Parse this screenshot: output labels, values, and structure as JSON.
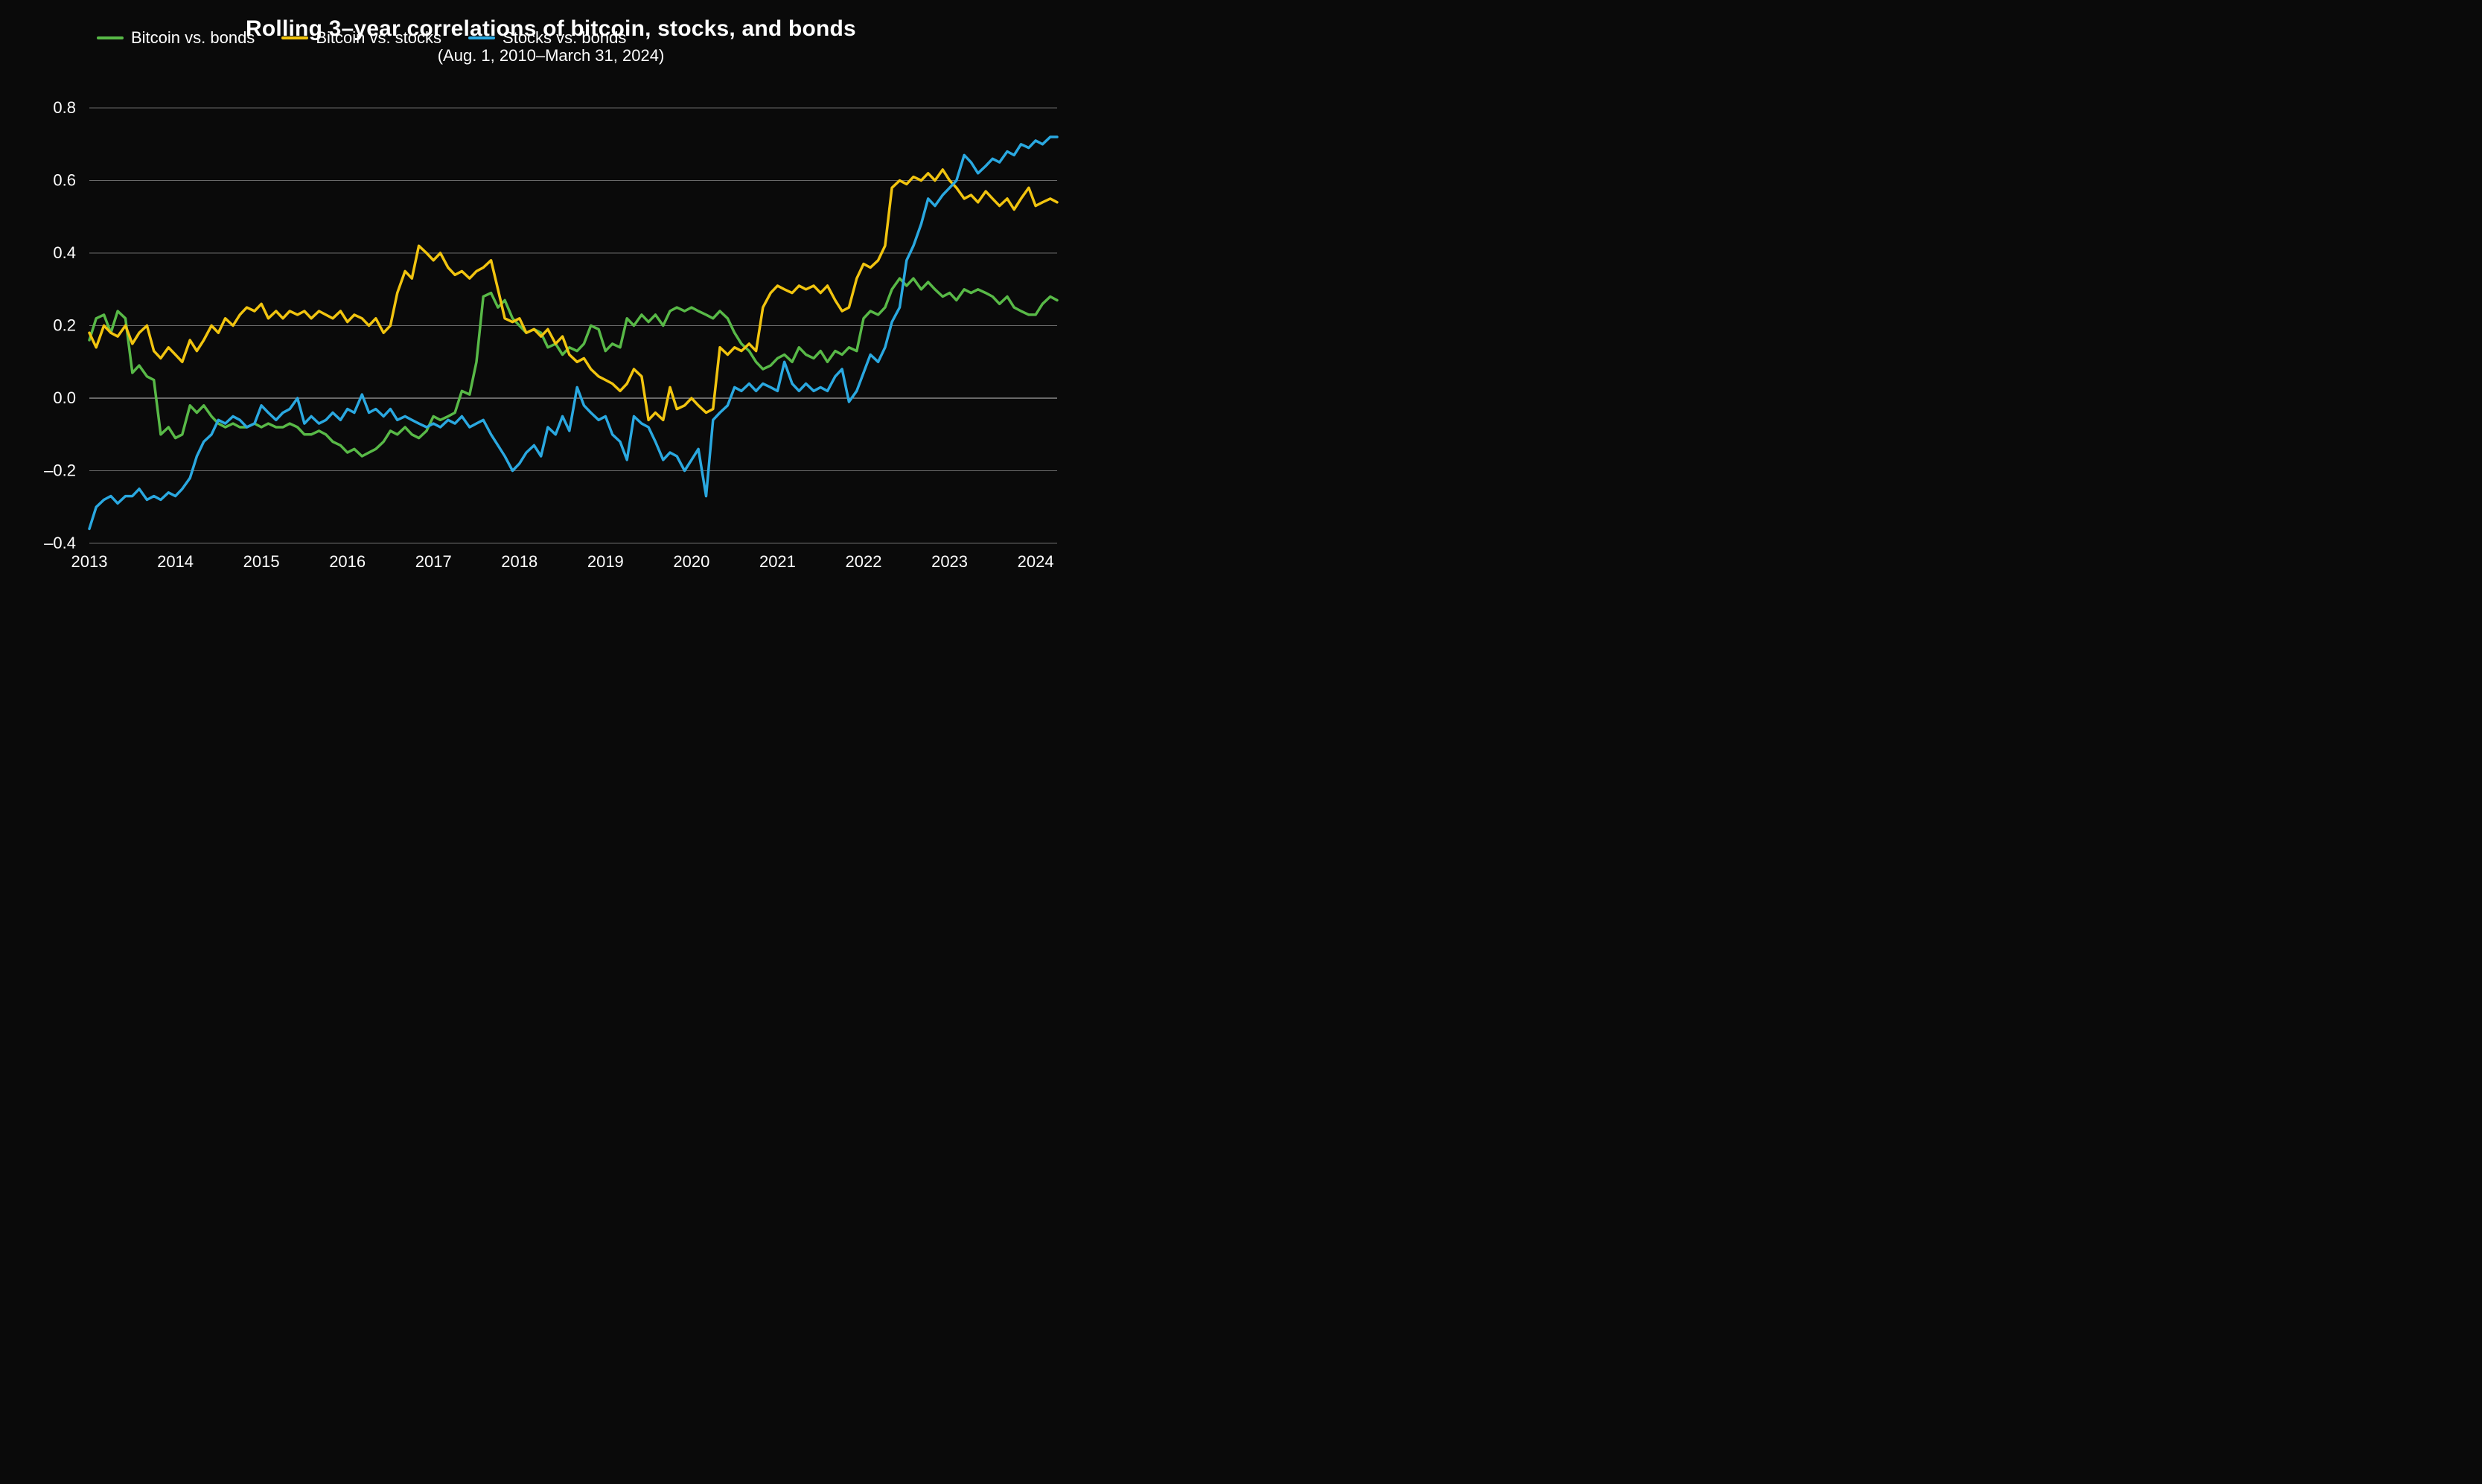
{
  "chart": {
    "type": "line",
    "title": "Rolling 3–year correlations of bitcoin, stocks, and bonds",
    "subtitle": "(Aug. 1, 2010–March 31, 2024)",
    "background_color": "#0a0a0a",
    "title_color": "#ffffff",
    "title_fontsize": 30,
    "subtitle_fontsize": 22,
    "axis_label_fontsize": 22,
    "axis_label_color": "#ffffff",
    "line_width": 3.5,
    "grid_color_major": "#6a6a6a",
    "grid_color_zero": "#c8c8c8",
    "plot_inner_padding_left": 0,
    "x": {
      "min": 2013,
      "max": 2024.25,
      "ticks": [
        2013,
        2014,
        2015,
        2016,
        2017,
        2018,
        2019,
        2020,
        2021,
        2022,
        2023,
        2024
      ],
      "tick_labels": [
        "2013",
        "2014",
        "2015",
        "2016",
        "2017",
        "2018",
        "2019",
        "2020",
        "2021",
        "2022",
        "2023",
        "2024"
      ]
    },
    "y": {
      "min": -0.4,
      "max": 0.8,
      "ticks": [
        -0.4,
        -0.2,
        0.0,
        0.2,
        0.4,
        0.6,
        0.8
      ],
      "tick_labels": [
        "–0.4",
        "–0.2",
        "0.0",
        "0.2",
        "0.4",
        "0.6",
        "0.8"
      ],
      "zero_line": 0.0
    },
    "legend": {
      "position": "top-inside",
      "items": [
        {
          "label": "Bitcoin vs. bonds",
          "color": "#58b947"
        },
        {
          "label": "Bitcoin vs. stocks",
          "color": "#f1c40f"
        },
        {
          "label": "Stocks vs. bonds",
          "color": "#2aa8e0"
        }
      ]
    },
    "series": [
      {
        "name": "Bitcoin vs. bonds",
        "color": "#58b947",
        "x": [
          2013.0,
          2013.08,
          2013.17,
          2013.25,
          2013.33,
          2013.42,
          2013.5,
          2013.58,
          2013.67,
          2013.75,
          2013.83,
          2013.92,
          2014.0,
          2014.08,
          2014.17,
          2014.25,
          2014.33,
          2014.42,
          2014.5,
          2014.58,
          2014.67,
          2014.75,
          2014.83,
          2014.92,
          2015.0,
          2015.08,
          2015.17,
          2015.25,
          2015.33,
          2015.42,
          2015.5,
          2015.58,
          2015.67,
          2015.75,
          2015.83,
          2015.92,
          2016.0,
          2016.08,
          2016.17,
          2016.25,
          2016.33,
          2016.42,
          2016.5,
          2016.58,
          2016.67,
          2016.75,
          2016.83,
          2016.92,
          2017.0,
          2017.08,
          2017.17,
          2017.25,
          2017.33,
          2017.42,
          2017.5,
          2017.58,
          2017.67,
          2017.75,
          2017.83,
          2017.92,
          2018.0,
          2018.08,
          2018.17,
          2018.25,
          2018.33,
          2018.42,
          2018.5,
          2018.58,
          2018.67,
          2018.75,
          2018.83,
          2018.92,
          2019.0,
          2019.08,
          2019.17,
          2019.25,
          2019.33,
          2019.42,
          2019.5,
          2019.58,
          2019.67,
          2019.75,
          2019.83,
          2019.92,
          2020.0,
          2020.08,
          2020.17,
          2020.25,
          2020.33,
          2020.42,
          2020.5,
          2020.58,
          2020.67,
          2020.75,
          2020.83,
          2020.92,
          2021.0,
          2021.08,
          2021.17,
          2021.25,
          2021.33,
          2021.42,
          2021.5,
          2021.58,
          2021.67,
          2021.75,
          2021.83,
          2021.92,
          2022.0,
          2022.08,
          2022.17,
          2022.25,
          2022.33,
          2022.42,
          2022.5,
          2022.58,
          2022.67,
          2022.75,
          2022.83,
          2022.92,
          2023.0,
          2023.08,
          2023.17,
          2023.25,
          2023.33,
          2023.42,
          2023.5,
          2023.58,
          2023.67,
          2023.75,
          2023.83,
          2023.92,
          2024.0,
          2024.08,
          2024.17,
          2024.25
        ],
        "y": [
          0.16,
          0.22,
          0.23,
          0.18,
          0.24,
          0.22,
          0.07,
          0.09,
          0.06,
          0.05,
          -0.1,
          -0.08,
          -0.11,
          -0.1,
          -0.02,
          -0.04,
          -0.02,
          -0.05,
          -0.07,
          -0.08,
          -0.07,
          -0.08,
          -0.08,
          -0.07,
          -0.08,
          -0.07,
          -0.08,
          -0.08,
          -0.07,
          -0.08,
          -0.1,
          -0.1,
          -0.09,
          -0.1,
          -0.12,
          -0.13,
          -0.15,
          -0.14,
          -0.16,
          -0.15,
          -0.14,
          -0.12,
          -0.09,
          -0.1,
          -0.08,
          -0.1,
          -0.11,
          -0.09,
          -0.05,
          -0.06,
          -0.05,
          -0.04,
          0.02,
          0.01,
          0.1,
          0.28,
          0.29,
          0.25,
          0.27,
          0.22,
          0.2,
          0.18,
          0.19,
          0.18,
          0.14,
          0.15,
          0.12,
          0.14,
          0.13,
          0.15,
          0.2,
          0.19,
          0.13,
          0.15,
          0.14,
          0.22,
          0.2,
          0.23,
          0.21,
          0.23,
          0.2,
          0.24,
          0.25,
          0.24,
          0.25,
          0.24,
          0.23,
          0.22,
          0.24,
          0.22,
          0.18,
          0.15,
          0.13,
          0.1,
          0.08,
          0.09,
          0.11,
          0.12,
          0.1,
          0.14,
          0.12,
          0.11,
          0.13,
          0.1,
          0.13,
          0.12,
          0.14,
          0.13,
          0.22,
          0.24,
          0.23,
          0.25,
          0.3,
          0.33,
          0.31,
          0.33,
          0.3,
          0.32,
          0.3,
          0.28,
          0.29,
          0.27,
          0.3,
          0.29,
          0.3,
          0.29,
          0.28,
          0.26,
          0.28,
          0.25,
          0.24,
          0.23,
          0.23,
          0.26,
          0.28,
          0.27
        ]
      },
      {
        "name": "Bitcoin vs. stocks",
        "color": "#f1c40f",
        "x": [
          2013.0,
          2013.08,
          2013.17,
          2013.25,
          2013.33,
          2013.42,
          2013.5,
          2013.58,
          2013.67,
          2013.75,
          2013.83,
          2013.92,
          2014.0,
          2014.08,
          2014.17,
          2014.25,
          2014.33,
          2014.42,
          2014.5,
          2014.58,
          2014.67,
          2014.75,
          2014.83,
          2014.92,
          2015.0,
          2015.08,
          2015.17,
          2015.25,
          2015.33,
          2015.42,
          2015.5,
          2015.58,
          2015.67,
          2015.75,
          2015.83,
          2015.92,
          2016.0,
          2016.08,
          2016.17,
          2016.25,
          2016.33,
          2016.42,
          2016.5,
          2016.58,
          2016.67,
          2016.75,
          2016.83,
          2016.92,
          2017.0,
          2017.08,
          2017.17,
          2017.25,
          2017.33,
          2017.42,
          2017.5,
          2017.58,
          2017.67,
          2017.75,
          2017.83,
          2017.92,
          2018.0,
          2018.08,
          2018.17,
          2018.25,
          2018.33,
          2018.42,
          2018.5,
          2018.58,
          2018.67,
          2018.75,
          2018.83,
          2018.92,
          2019.0,
          2019.08,
          2019.17,
          2019.25,
          2019.33,
          2019.42,
          2019.5,
          2019.58,
          2019.67,
          2019.75,
          2019.83,
          2019.92,
          2020.0,
          2020.08,
          2020.17,
          2020.25,
          2020.33,
          2020.42,
          2020.5,
          2020.58,
          2020.67,
          2020.75,
          2020.83,
          2020.92,
          2021.0,
          2021.08,
          2021.17,
          2021.25,
          2021.33,
          2021.42,
          2021.5,
          2021.58,
          2021.67,
          2021.75,
          2021.83,
          2021.92,
          2022.0,
          2022.08,
          2022.17,
          2022.25,
          2022.33,
          2022.42,
          2022.5,
          2022.58,
          2022.67,
          2022.75,
          2022.83,
          2022.92,
          2023.0,
          2023.08,
          2023.17,
          2023.25,
          2023.33,
          2023.42,
          2023.5,
          2023.58,
          2023.67,
          2023.75,
          2023.83,
          2023.92,
          2024.0,
          2024.08,
          2024.17,
          2024.25
        ],
        "y": [
          0.18,
          0.14,
          0.2,
          0.18,
          0.17,
          0.2,
          0.15,
          0.18,
          0.2,
          0.13,
          0.11,
          0.14,
          0.12,
          0.1,
          0.16,
          0.13,
          0.16,
          0.2,
          0.18,
          0.22,
          0.2,
          0.23,
          0.25,
          0.24,
          0.26,
          0.22,
          0.24,
          0.22,
          0.24,
          0.23,
          0.24,
          0.22,
          0.24,
          0.23,
          0.22,
          0.24,
          0.21,
          0.23,
          0.22,
          0.2,
          0.22,
          0.18,
          0.2,
          0.29,
          0.35,
          0.33,
          0.42,
          0.4,
          0.38,
          0.4,
          0.36,
          0.34,
          0.35,
          0.33,
          0.35,
          0.36,
          0.38,
          0.3,
          0.22,
          0.21,
          0.22,
          0.18,
          0.19,
          0.17,
          0.19,
          0.15,
          0.17,
          0.12,
          0.1,
          0.11,
          0.08,
          0.06,
          0.05,
          0.04,
          0.02,
          0.04,
          0.08,
          0.06,
          -0.06,
          -0.04,
          -0.06,
          0.03,
          -0.03,
          -0.02,
          0.0,
          -0.02,
          -0.04,
          -0.03,
          0.14,
          0.12,
          0.14,
          0.13,
          0.15,
          0.13,
          0.25,
          0.29,
          0.31,
          0.3,
          0.29,
          0.31,
          0.3,
          0.31,
          0.29,
          0.31,
          0.27,
          0.24,
          0.25,
          0.33,
          0.37,
          0.36,
          0.38,
          0.42,
          0.58,
          0.6,
          0.59,
          0.61,
          0.6,
          0.62,
          0.6,
          0.63,
          0.6,
          0.58,
          0.55,
          0.56,
          0.54,
          0.57,
          0.55,
          0.53,
          0.55,
          0.52,
          0.55,
          0.58,
          0.53,
          0.54,
          0.55,
          0.54
        ]
      },
      {
        "name": "Stocks vs. bonds",
        "color": "#2aa8e0",
        "x": [
          2013.0,
          2013.08,
          2013.17,
          2013.25,
          2013.33,
          2013.42,
          2013.5,
          2013.58,
          2013.67,
          2013.75,
          2013.83,
          2013.92,
          2014.0,
          2014.08,
          2014.17,
          2014.25,
          2014.33,
          2014.42,
          2014.5,
          2014.58,
          2014.67,
          2014.75,
          2014.83,
          2014.92,
          2015.0,
          2015.08,
          2015.17,
          2015.25,
          2015.33,
          2015.42,
          2015.5,
          2015.58,
          2015.67,
          2015.75,
          2015.83,
          2015.92,
          2016.0,
          2016.08,
          2016.17,
          2016.25,
          2016.33,
          2016.42,
          2016.5,
          2016.58,
          2016.67,
          2016.75,
          2016.83,
          2016.92,
          2017.0,
          2017.08,
          2017.17,
          2017.25,
          2017.33,
          2017.42,
          2017.5,
          2017.58,
          2017.67,
          2017.75,
          2017.83,
          2017.92,
          2018.0,
          2018.08,
          2018.17,
          2018.25,
          2018.33,
          2018.42,
          2018.5,
          2018.58,
          2018.67,
          2018.75,
          2018.83,
          2018.92,
          2019.0,
          2019.08,
          2019.17,
          2019.25,
          2019.33,
          2019.42,
          2019.5,
          2019.58,
          2019.67,
          2019.75,
          2019.83,
          2019.92,
          2020.0,
          2020.08,
          2020.17,
          2020.25,
          2020.33,
          2020.42,
          2020.5,
          2020.58,
          2020.67,
          2020.75,
          2020.83,
          2020.92,
          2021.0,
          2021.08,
          2021.17,
          2021.25,
          2021.33,
          2021.42,
          2021.5,
          2021.58,
          2021.67,
          2021.75,
          2021.83,
          2021.92,
          2022.0,
          2022.08,
          2022.17,
          2022.25,
          2022.33,
          2022.42,
          2022.5,
          2022.58,
          2022.67,
          2022.75,
          2022.83,
          2022.92,
          2023.0,
          2023.08,
          2023.17,
          2023.25,
          2023.33,
          2023.42,
          2023.5,
          2023.58,
          2023.67,
          2023.75,
          2023.83,
          2023.92,
          2024.0,
          2024.08,
          2024.17,
          2024.25
        ],
        "y": [
          -0.36,
          -0.3,
          -0.28,
          -0.27,
          -0.29,
          -0.27,
          -0.27,
          -0.25,
          -0.28,
          -0.27,
          -0.28,
          -0.26,
          -0.27,
          -0.25,
          -0.22,
          -0.16,
          -0.12,
          -0.1,
          -0.06,
          -0.07,
          -0.05,
          -0.06,
          -0.08,
          -0.07,
          -0.02,
          -0.04,
          -0.06,
          -0.04,
          -0.03,
          0.0,
          -0.07,
          -0.05,
          -0.07,
          -0.06,
          -0.04,
          -0.06,
          -0.03,
          -0.04,
          0.01,
          -0.04,
          -0.03,
          -0.05,
          -0.03,
          -0.06,
          -0.05,
          -0.06,
          -0.07,
          -0.08,
          -0.07,
          -0.08,
          -0.06,
          -0.07,
          -0.05,
          -0.08,
          -0.07,
          -0.06,
          -0.1,
          -0.13,
          -0.16,
          -0.2,
          -0.18,
          -0.15,
          -0.13,
          -0.16,
          -0.08,
          -0.1,
          -0.05,
          -0.09,
          0.03,
          -0.02,
          -0.04,
          -0.06,
          -0.05,
          -0.1,
          -0.12,
          -0.17,
          -0.05,
          -0.07,
          -0.08,
          -0.12,
          -0.17,
          -0.15,
          -0.16,
          -0.2,
          -0.17,
          -0.14,
          -0.27,
          -0.06,
          -0.04,
          -0.02,
          0.03,
          0.02,
          0.04,
          0.02,
          0.04,
          0.03,
          0.02,
          0.1,
          0.04,
          0.02,
          0.04,
          0.02,
          0.03,
          0.02,
          0.06,
          0.08,
          -0.01,
          0.02,
          0.07,
          0.12,
          0.1,
          0.14,
          0.21,
          0.25,
          0.38,
          0.42,
          0.48,
          0.55,
          0.53,
          0.56,
          0.58,
          0.6,
          0.67,
          0.65,
          0.62,
          0.64,
          0.66,
          0.65,
          0.68,
          0.67,
          0.7,
          0.69,
          0.71,
          0.7,
          0.72,
          0.72
        ]
      }
    ]
  }
}
